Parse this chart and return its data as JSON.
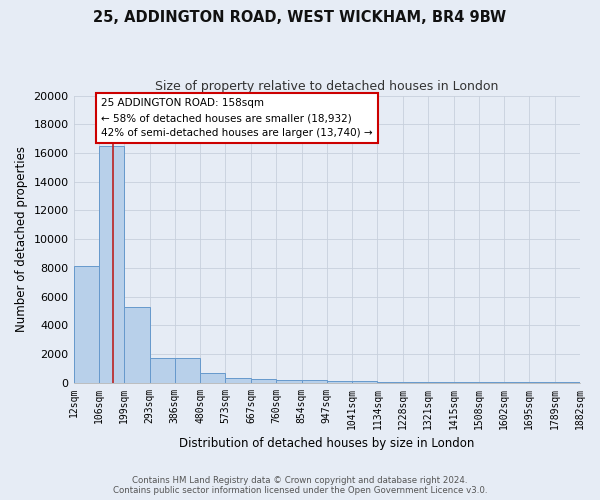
{
  "title": "25, ADDINGTON ROAD, WEST WICKHAM, BR4 9BW",
  "subtitle": "Size of property relative to detached houses in London",
  "xlabel": "Distribution of detached houses by size in London",
  "ylabel": "Number of detached properties",
  "footer_line1": "Contains HM Land Registry data © Crown copyright and database right 2024.",
  "footer_line2": "Contains public sector information licensed under the Open Government Licence v3.0.",
  "bin_edges": [
    12,
    106,
    199,
    293,
    386,
    480,
    573,
    667,
    760,
    854,
    947,
    1041,
    1134,
    1228,
    1321,
    1415,
    1508,
    1602,
    1695,
    1789,
    1882
  ],
  "bar_heights": [
    8100,
    16500,
    5300,
    1750,
    1750,
    700,
    300,
    250,
    200,
    200,
    150,
    100,
    80,
    60,
    50,
    40,
    30,
    25,
    20,
    15
  ],
  "bar_color": "#b8d0ea",
  "bar_edge_color": "#6699cc",
  "background_color": "#e6ecf5",
  "fig_background_color": "#e6ecf5",
  "grid_color": "#c8d0dc",
  "property_line_x": 158,
  "property_line_color": "#bb2222",
  "annotation_text": "25 ADDINGTON ROAD: 158sqm\n← 58% of detached houses are smaller (18,932)\n42% of semi-detached houses are larger (13,740) →",
  "annotation_box_color": "#ffffff",
  "annotation_box_edge_color": "#cc0000",
  "ylim": [
    0,
    20000
  ],
  "yticks": [
    0,
    2000,
    4000,
    6000,
    8000,
    10000,
    12000,
    14000,
    16000,
    18000,
    20000
  ],
  "tick_labels": [
    "12sqm",
    "106sqm",
    "199sqm",
    "293sqm",
    "386sqm",
    "480sqm",
    "573sqm",
    "667sqm",
    "760sqm",
    "854sqm",
    "947sqm",
    "1041sqm",
    "1134sqm",
    "1228sqm",
    "1321sqm",
    "1415sqm",
    "1508sqm",
    "1602sqm",
    "1695sqm",
    "1789sqm",
    "1882sqm"
  ]
}
